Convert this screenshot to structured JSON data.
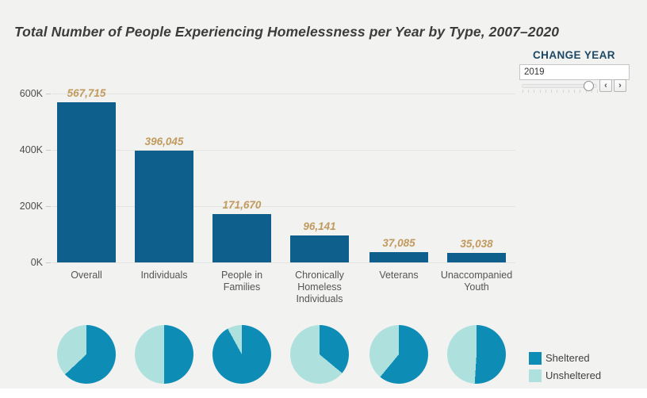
{
  "title": "Total Number of People Experiencing Homelessness per Year by Type, 2007–2020",
  "controls": {
    "label": "CHANGE YEAR",
    "year_value": "2019",
    "prev": "‹",
    "next": "›"
  },
  "colors": {
    "bar": "#0e5f8c",
    "sheltered": "#0d8cb6",
    "unsheltered": "#aee0de",
    "value_label": "#c19a5d",
    "background": "#f2f2f1",
    "title_text": "#3c3c3c",
    "control_label": "#1c4865"
  },
  "legend": {
    "items": [
      {
        "label": "Sheltered",
        "color": "#0d8cb6"
      },
      {
        "label": "Unsheltered",
        "color": "#aee0de"
      }
    ]
  },
  "chart_data": [
    {
      "type": "bar",
      "title": "Total Number of People Experiencing Homelessness per Year by Type, 2007–2020",
      "year_shown": "2019",
      "categories": [
        "Overall",
        "Individuals",
        "People in Families",
        "Chronically Homeless Individuals",
        "Veterans",
        "Unaccompanied Youth"
      ],
      "category_lines": [
        [
          "Overall"
        ],
        [
          "Individuals"
        ],
        [
          "People in",
          "Families"
        ],
        [
          "Chronically",
          "Homeless",
          "Individuals"
        ],
        [
          "Veterans"
        ],
        [
          "Unaccompanied",
          "Youth"
        ]
      ],
      "values": [
        567715,
        396045,
        171670,
        96141,
        37085,
        35038
      ],
      "value_labels": [
        "567,715",
        "396,045",
        "171,670",
        "96,141",
        "37,085",
        "35,038"
      ],
      "xlabel": "",
      "ylabel": "",
      "ylim": [
        0,
        600000
      ],
      "yticks": [
        {
          "label": "0K",
          "value": 0
        },
        {
          "label": "200K",
          "value": 200000
        },
        {
          "label": "400K",
          "value": 400000
        },
        {
          "label": "600K",
          "value": 600000
        }
      ],
      "grid": true,
      "bar_color": "#0e5f8c"
    },
    {
      "type": "pie",
      "legend": [
        "Sheltered",
        "Unsheltered"
      ],
      "legend_position": "right",
      "slice_colors": {
        "Sheltered": "#0d8cb6",
        "Unsheltered": "#aee0de"
      },
      "series": [
        {
          "category": "Overall",
          "sheltered_pct": 63,
          "unsheltered_pct": 37
        },
        {
          "category": "Individuals",
          "sheltered_pct": 50,
          "unsheltered_pct": 50
        },
        {
          "category": "People in Families",
          "sheltered_pct": 92,
          "unsheltered_pct": 8
        },
        {
          "category": "Chronically Homeless Individuals",
          "sheltered_pct": 36,
          "unsheltered_pct": 64
        },
        {
          "category": "Veterans",
          "sheltered_pct": 61,
          "unsheltered_pct": 39
        },
        {
          "category": "Unaccompanied Youth",
          "sheltered_pct": 51,
          "unsheltered_pct": 49
        }
      ]
    }
  ]
}
